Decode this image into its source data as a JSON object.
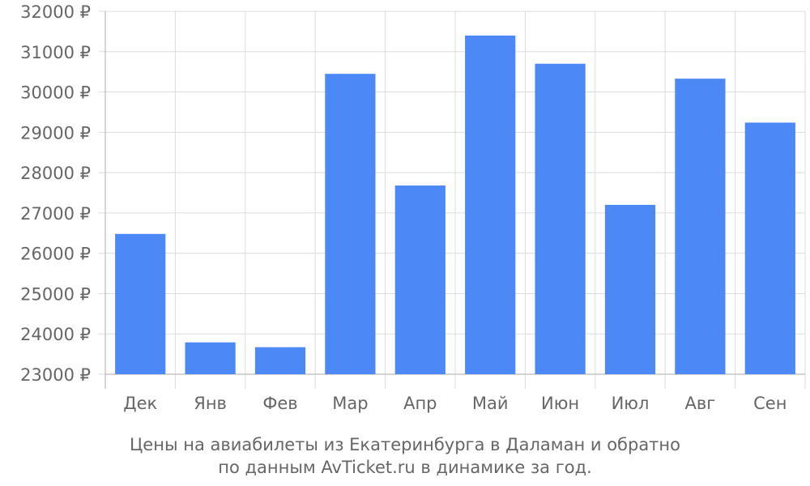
{
  "chart_data": {
    "type": "bar",
    "categories": [
      "Дек",
      "Янв",
      "Фев",
      "Мар",
      "Апр",
      "Май",
      "Июн",
      "Июл",
      "Авг",
      "Сен"
    ],
    "values": [
      26480,
      23790,
      23670,
      30450,
      27680,
      31400,
      30700,
      27200,
      30330,
      29240
    ],
    "ylim": [
      23000,
      32000
    ],
    "yticks": [
      23000,
      24000,
      25000,
      26000,
      27000,
      28000,
      29000,
      30000,
      31000,
      32000
    ],
    "ytick_suffix": " ₽",
    "grid": true,
    "bar_color": "#4d88f7",
    "caption_lines": [
      "Цены на авиабилеты из Екатеринбурга в Даламан и обратно",
      "по данным AvTicket.ru в динамике за год."
    ]
  }
}
